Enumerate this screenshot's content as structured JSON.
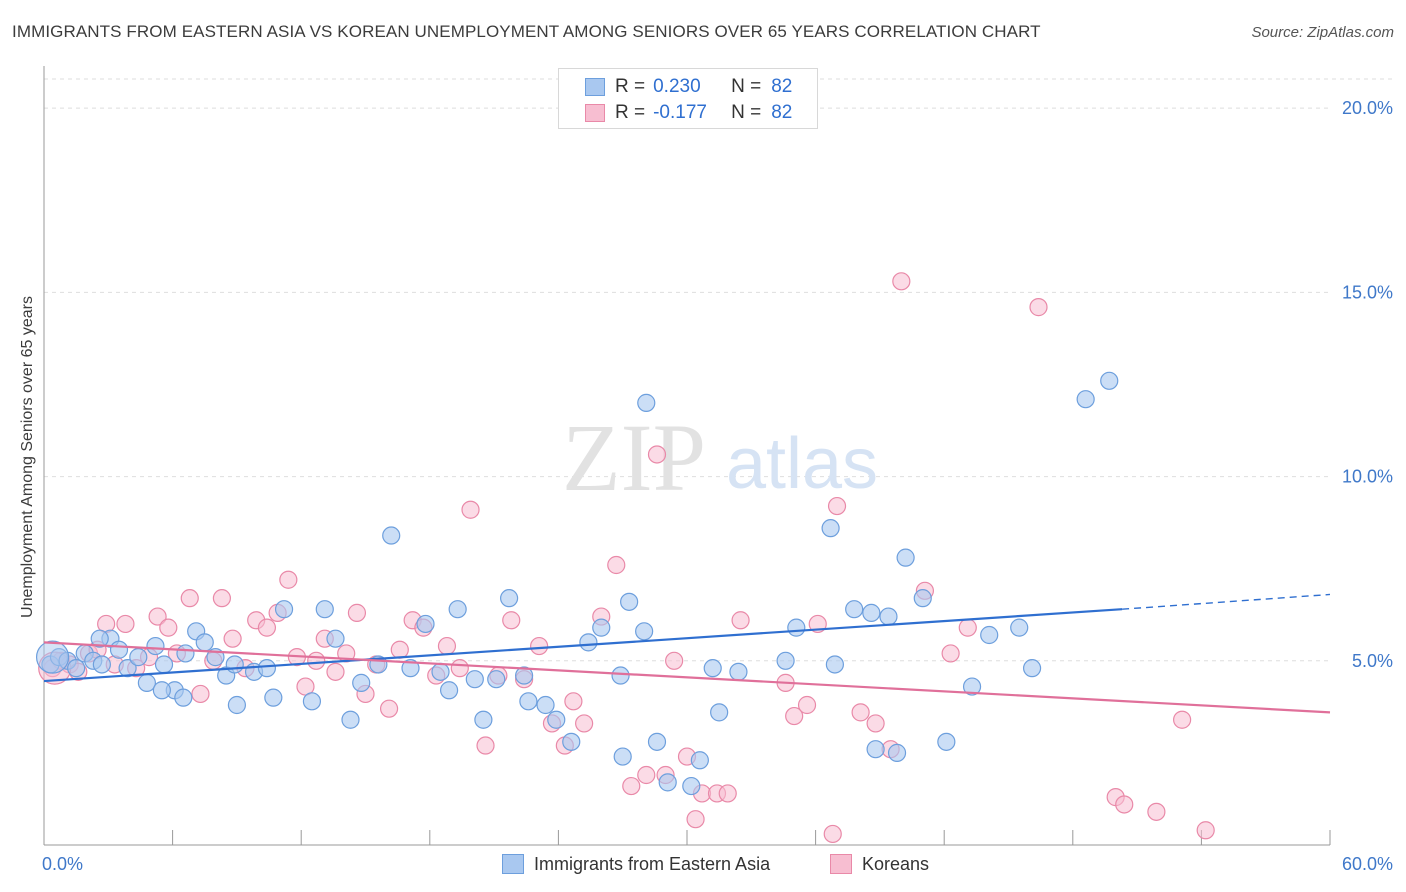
{
  "header": {
    "title": "IMMIGRANTS FROM EASTERN ASIA VS KOREAN UNEMPLOYMENT AMONG SENIORS OVER 65 YEARS CORRELATION CHART",
    "source": "Source: ZipAtlas.com"
  },
  "watermark": {
    "zip": "ZIP",
    "atlas": "atlas"
  },
  "colors": {
    "blue_fill": "#a9c8f0",
    "blue_stroke": "#6d9fdd",
    "blue_line": "#2f6fd0",
    "pink_fill": "#f7bed1",
    "pink_stroke": "#e989a8",
    "pink_line": "#e0709a",
    "grid": "#dedede",
    "tick_label": "#3f78c9"
  },
  "legend": {
    "rows": [
      {
        "r_label": "R =",
        "r_value": "0.230",
        "n_label": "N =",
        "n_value": "82"
      },
      {
        "r_label": "R =",
        "r_value": "-0.177",
        "n_label": "N =",
        "n_value": "82"
      }
    ]
  },
  "bottom_legend": {
    "series1": "Immigrants from Eastern Asia",
    "series2": "Koreans"
  },
  "chart_data": {
    "type": "scatter",
    "title": "IMMIGRANTS FROM EASTERN ASIA VS KOREAN UNEMPLOYMENT AMONG SENIORS OVER 65 YEARS CORRELATION CHART",
    "xlabel": "",
    "ylabel": "Unemployment Among Seniors over 65 years",
    "xlim": [
      0,
      60
    ],
    "ylim": [
      0,
      20.9
    ],
    "x_tick_labels": [
      "0.0%",
      "60.0%"
    ],
    "y_ticks": [
      5,
      10,
      15,
      20
    ],
    "y_tick_labels": [
      "5.0%",
      "10.0%",
      "15.0%",
      "20.0%"
    ],
    "grid": true,
    "series": [
      {
        "name": "Immigrants from Eastern Asia",
        "R": 0.23,
        "N": 82,
        "trend": {
          "x_start": 0,
          "y_start": 4.45,
          "x_solid_end": 50.3,
          "y_solid_end": 6.4,
          "x_end": 60,
          "y_end": 6.8
        },
        "points": [
          [
            0.3,
            4.9
          ],
          [
            0.7,
            5.1
          ],
          [
            1.1,
            5.0
          ],
          [
            1.5,
            4.8
          ],
          [
            1.9,
            5.2
          ],
          [
            2.3,
            5.0
          ],
          [
            2.7,
            4.9
          ],
          [
            3.1,
            5.6
          ],
          [
            3.5,
            5.3
          ],
          [
            3.9,
            4.8
          ],
          [
            4.4,
            5.1
          ],
          [
            4.8,
            4.4
          ],
          [
            5.2,
            5.4
          ],
          [
            5.6,
            4.9
          ],
          [
            6.1,
            4.2
          ],
          [
            6.6,
            5.2
          ],
          [
            7.1,
            5.8
          ],
          [
            7.5,
            5.5
          ],
          [
            8.0,
            5.1
          ],
          [
            8.5,
            4.6
          ],
          [
            9.0,
            3.8
          ],
          [
            9.8,
            4.7
          ],
          [
            10.4,
            4.8
          ],
          [
            11.2,
            6.4
          ],
          [
            12.5,
            3.9
          ],
          [
            13.1,
            6.4
          ],
          [
            13.6,
            5.6
          ],
          [
            14.3,
            3.4
          ],
          [
            14.8,
            4.4
          ],
          [
            15.6,
            4.9
          ],
          [
            16.2,
            8.4
          ],
          [
            17.1,
            4.8
          ],
          [
            17.8,
            6.0
          ],
          [
            18.5,
            4.7
          ],
          [
            19.3,
            6.4
          ],
          [
            20.1,
            4.5
          ],
          [
            20.5,
            3.4
          ],
          [
            21.1,
            4.5
          ],
          [
            21.7,
            6.7
          ],
          [
            22.4,
            4.6
          ],
          [
            23.4,
            3.8
          ],
          [
            23.9,
            3.4
          ],
          [
            24.6,
            2.8
          ],
          [
            25.4,
            5.5
          ],
          [
            26.0,
            5.9
          ],
          [
            27.3,
            6.6
          ],
          [
            26.9,
            4.6
          ],
          [
            28.0,
            5.8
          ],
          [
            28.1,
            12.0
          ],
          [
            28.6,
            2.8
          ],
          [
            29.1,
            1.7
          ],
          [
            30.2,
            1.6
          ],
          [
            30.6,
            2.3
          ],
          [
            31.2,
            4.8
          ],
          [
            31.5,
            3.6
          ],
          [
            32.4,
            4.7
          ],
          [
            34.6,
            5.0
          ],
          [
            35.1,
            5.9
          ],
          [
            36.9,
            4.9
          ],
          [
            37.8,
            6.4
          ],
          [
            38.6,
            6.3
          ],
          [
            39.4,
            6.2
          ],
          [
            40.2,
            7.8
          ],
          [
            41.0,
            6.7
          ],
          [
            42.1,
            2.8
          ],
          [
            43.3,
            4.3
          ],
          [
            44.1,
            5.7
          ],
          [
            45.5,
            5.9
          ],
          [
            46.1,
            4.8
          ],
          [
            48.6,
            12.1
          ],
          [
            49.7,
            12.6
          ],
          [
            36.7,
            8.6
          ],
          [
            38.8,
            2.6
          ],
          [
            39.8,
            2.5
          ],
          [
            6.5,
            4.0
          ],
          [
            10.7,
            4.0
          ],
          [
            18.9,
            4.2
          ],
          [
            22.6,
            3.9
          ],
          [
            27.0,
            2.4
          ],
          [
            5.5,
            4.2
          ],
          [
            2.6,
            5.6
          ],
          [
            8.9,
            4.9
          ]
        ]
      },
      {
        "name": "Koreans",
        "R": -0.177,
        "N": 82,
        "trend": {
          "x_start": 0,
          "y_start": 5.5,
          "x_end": 60,
          "y_end": 3.6
        },
        "points": [
          [
            0.4,
            4.8
          ],
          [
            0.8,
            5.0
          ],
          [
            1.2,
            4.9
          ],
          [
            1.6,
            4.7
          ],
          [
            2.1,
            5.2
          ],
          [
            2.5,
            5.3
          ],
          [
            2.9,
            6.0
          ],
          [
            3.3,
            4.9
          ],
          [
            3.8,
            6.0
          ],
          [
            4.3,
            4.8
          ],
          [
            4.9,
            5.1
          ],
          [
            5.3,
            6.2
          ],
          [
            5.8,
            5.9
          ],
          [
            6.2,
            5.2
          ],
          [
            6.8,
            6.7
          ],
          [
            7.3,
            4.1
          ],
          [
            7.9,
            5.0
          ],
          [
            8.3,
            6.7
          ],
          [
            8.8,
            5.6
          ],
          [
            9.4,
            4.8
          ],
          [
            9.9,
            6.1
          ],
          [
            10.4,
            5.9
          ],
          [
            10.9,
            6.3
          ],
          [
            11.4,
            7.2
          ],
          [
            11.8,
            5.1
          ],
          [
            12.2,
            4.3
          ],
          [
            12.7,
            5.0
          ],
          [
            13.1,
            5.6
          ],
          [
            13.6,
            4.7
          ],
          [
            14.1,
            5.2
          ],
          [
            14.6,
            6.3
          ],
          [
            15.0,
            4.1
          ],
          [
            15.5,
            4.9
          ],
          [
            16.1,
            3.7
          ],
          [
            16.6,
            5.3
          ],
          [
            17.2,
            6.1
          ],
          [
            17.7,
            5.9
          ],
          [
            18.3,
            4.6
          ],
          [
            18.8,
            5.4
          ],
          [
            19.4,
            4.8
          ],
          [
            19.9,
            9.1
          ],
          [
            20.6,
            2.7
          ],
          [
            21.2,
            4.6
          ],
          [
            21.8,
            6.1
          ],
          [
            22.4,
            4.5
          ],
          [
            23.1,
            5.4
          ],
          [
            23.7,
            3.3
          ],
          [
            24.3,
            2.7
          ],
          [
            24.7,
            3.9
          ],
          [
            25.2,
            3.3
          ],
          [
            26.0,
            6.2
          ],
          [
            26.7,
            7.6
          ],
          [
            27.4,
            1.6
          ],
          [
            28.1,
            1.9
          ],
          [
            28.6,
            10.6
          ],
          [
            29.0,
            1.9
          ],
          [
            29.4,
            5.0
          ],
          [
            30.0,
            2.4
          ],
          [
            30.4,
            0.7
          ],
          [
            30.7,
            1.4
          ],
          [
            31.4,
            1.4
          ],
          [
            31.9,
            1.4
          ],
          [
            32.5,
            6.1
          ],
          [
            34.6,
            4.4
          ],
          [
            35.0,
            3.5
          ],
          [
            35.6,
            3.8
          ],
          [
            36.1,
            6.0
          ],
          [
            37.0,
            9.2
          ],
          [
            36.8,
            0.3
          ],
          [
            38.1,
            3.6
          ],
          [
            38.8,
            3.3
          ],
          [
            39.5,
            2.6
          ],
          [
            40.0,
            15.3
          ],
          [
            41.1,
            6.9
          ],
          [
            42.3,
            5.2
          ],
          [
            43.1,
            5.9
          ],
          [
            46.4,
            14.6
          ],
          [
            50.0,
            1.3
          ],
          [
            50.4,
            1.1
          ],
          [
            51.9,
            0.9
          ],
          [
            53.1,
            3.4
          ],
          [
            54.2,
            0.4
          ]
        ]
      }
    ]
  }
}
